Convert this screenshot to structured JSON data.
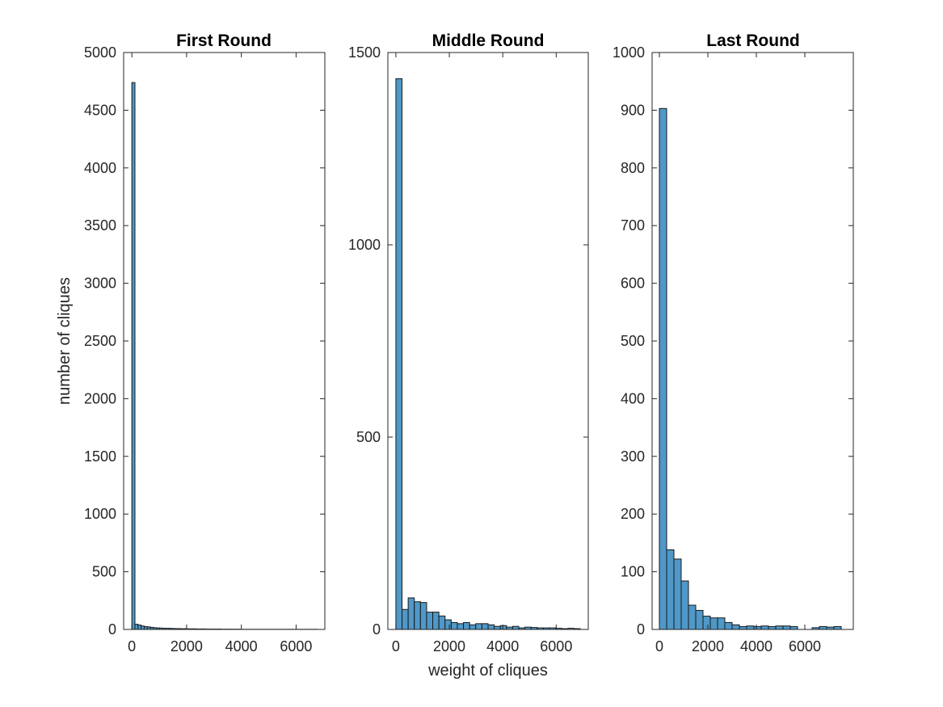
{
  "figure": {
    "xlabel": "weight of cliques",
    "ylabel": "number of cliques"
  },
  "colors": {
    "bar_fill": "#4f98c8",
    "bar_edge": "#1a1a1a",
    "axis": "#262626"
  },
  "chart_data": [
    {
      "type": "bar",
      "title": "First Round",
      "xlim": [
        -300,
        7050
      ],
      "ylim": [
        0,
        5000
      ],
      "xticks": [
        0,
        2000,
        4000,
        6000
      ],
      "yticks": [
        0,
        500,
        1000,
        1500,
        2000,
        2500,
        3000,
        3500,
        4000,
        4500,
        5000
      ],
      "bin_width": 113,
      "bin_start": 0,
      "values": [
        4740,
        45,
        38,
        30,
        25,
        22,
        18,
        15,
        13,
        12,
        10,
        10,
        9,
        8,
        7,
        7,
        6,
        6,
        5,
        5,
        5,
        4,
        4,
        4,
        3,
        3,
        3,
        3,
        3,
        2,
        2,
        2,
        2,
        2,
        2,
        1,
        1,
        1,
        1,
        1,
        1,
        1,
        1,
        1,
        1,
        1,
        1,
        1,
        1,
        1,
        1,
        1,
        1,
        1,
        1,
        1,
        1,
        1,
        1,
        1
      ]
    },
    {
      "type": "bar",
      "title": "Middle Round",
      "xlim": [
        -300,
        7200
      ],
      "ylim": [
        0,
        1500
      ],
      "xticks": [
        0,
        2000,
        4000,
        6000
      ],
      "yticks": [
        0,
        500,
        1000,
        1500
      ],
      "bin_width": 230,
      "bin_start": 0,
      "values": [
        1432,
        52,
        82,
        72,
        70,
        45,
        45,
        35,
        25,
        18,
        15,
        18,
        12,
        15,
        15,
        12,
        8,
        10,
        6,
        8,
        4,
        6,
        5,
        4,
        4,
        4,
        3,
        2,
        3,
        2
      ]
    },
    {
      "type": "bar",
      "title": "Last Round",
      "xlim": [
        -300,
        8000
      ],
      "ylim": [
        0,
        1000
      ],
      "xticks": [
        0,
        2000,
        4000,
        6000
      ],
      "yticks": [
        0,
        100,
        200,
        300,
        400,
        500,
        600,
        700,
        800,
        900,
        1000
      ],
      "bin_width": 300,
      "bin_start": 0,
      "values": [
        903,
        138,
        122,
        84,
        42,
        33,
        23,
        20,
        20,
        12,
        8,
        5,
        6,
        5,
        6,
        5,
        6,
        6,
        5,
        0,
        0,
        3,
        5,
        4,
        5
      ]
    }
  ]
}
